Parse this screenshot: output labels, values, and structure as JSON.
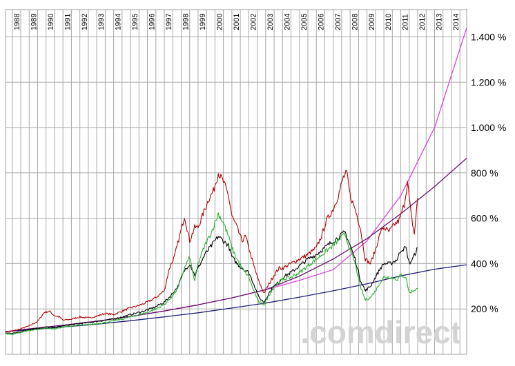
{
  "chart_data": {
    "type": "line",
    "title": "",
    "xlabel": "",
    "ylabel": "",
    "x_tick_labels": [
      "1988",
      "1989",
      "1990",
      "1991",
      "1992",
      "1993",
      "1994",
      "1995",
      "1996",
      "1997",
      "1998",
      "1999",
      "2000",
      "2001",
      "2002",
      "2003",
      "2004",
      "2005",
      "2006",
      "2007",
      "2008",
      "2009",
      "2010",
      "2011",
      "2012",
      "2013",
      "2014"
    ],
    "y_tick_labels": [
      "200 %",
      "400 %",
      "600 %",
      "800 %",
      "1.000 %",
      "1.200 %",
      "1.400 %"
    ],
    "y_tick_values": [
      200,
      400,
      600,
      800,
      1000,
      1200,
      1400
    ],
    "xlim": [
      1987.6,
      2014.9
    ],
    "ylim": [
      0,
      1520
    ],
    "grid": true,
    "legend": "none",
    "watermark": ".comdirect",
    "series": [
      {
        "color": "#b00000",
        "x": [
          1987.6,
          1988.0,
          1988.5,
          1989.0,
          1989.5,
          1989.9,
          1990.2,
          1990.5,
          1990.8,
          1991.0,
          1991.5,
          1992.0,
          1992.5,
          1993.0,
          1993.5,
          1994.0,
          1994.5,
          1995.0,
          1995.5,
          1996.0,
          1996.5,
          1997.0,
          1997.3,
          1997.6,
          1997.9,
          1998.2,
          1998.5,
          1998.8,
          1999.0,
          1999.3,
          1999.6,
          1999.9,
          2000.2,
          2000.5,
          2000.8,
          2001.0,
          2001.3,
          2001.6,
          2001.8,
          2002.0,
          2002.3,
          2002.6,
          2002.9,
          2003.2,
          2003.5,
          2003.8,
          2004.0,
          2004.5,
          2005.0,
          2005.5,
          2006.0,
          2006.3,
          2006.6,
          2007.0,
          2007.3,
          2007.6,
          2007.8,
          2008.0,
          2008.3,
          2008.6,
          2008.9,
          2009.2,
          2009.5,
          2009.8,
          2010.0,
          2010.3,
          2010.6,
          2010.9,
          2011.2,
          2011.4,
          2011.6,
          2011.8,
          2012.0
        ],
        "y": [
          100,
          102,
          112,
          125,
          145,
          185,
          190,
          170,
          165,
          150,
          155,
          165,
          160,
          168,
          180,
          175,
          190,
          205,
          215,
          230,
          250,
          280,
          380,
          430,
          520,
          610,
          500,
          560,
          560,
          620,
          680,
          720,
          800,
          760,
          700,
          610,
          560,
          500,
          520,
          470,
          390,
          320,
          270,
          310,
          350,
          380,
          380,
          400,
          420,
          440,
          470,
          520,
          590,
          640,
          700,
          780,
          800,
          700,
          640,
          560,
          420,
          400,
          460,
          540,
          560,
          540,
          570,
          590,
          660,
          760,
          620,
          530,
          690
        ]
      },
      {
        "color": "#000000",
        "x": [
          1987.6,
          1988.0,
          1988.5,
          1989.0,
          1989.5,
          1990.0,
          1990.5,
          1991.0,
          1991.5,
          1992.0,
          1992.5,
          1993.0,
          1993.5,
          1994.0,
          1994.5,
          1995.0,
          1995.5,
          1996.0,
          1996.5,
          1997.0,
          1997.4,
          1997.8,
          1998.2,
          1998.5,
          1998.8,
          1999.0,
          1999.4,
          1999.8,
          2000.2,
          2000.5,
          2000.8,
          2001.0,
          2001.3,
          2001.6,
          2002.0,
          2002.3,
          2002.6,
          2002.9,
          2003.2,
          2003.5,
          2003.8,
          2004.0,
          2004.5,
          2005.0,
          2005.5,
          2006.0,
          2006.5,
          2007.0,
          2007.4,
          2007.7,
          2008.0,
          2008.3,
          2008.6,
          2008.9,
          2009.2,
          2009.5,
          2009.8,
          2010.0,
          2010.4,
          2010.8,
          2011.0,
          2011.3,
          2011.5,
          2011.7,
          2012.0
        ],
        "y": [
          95,
          92,
          100,
          110,
          115,
          120,
          118,
          125,
          130,
          135,
          140,
          145,
          150,
          155,
          165,
          175,
          185,
          195,
          210,
          230,
          260,
          300,
          370,
          400,
          350,
          380,
          440,
          480,
          520,
          500,
          480,
          430,
          400,
          380,
          360,
          310,
          250,
          230,
          270,
          300,
          320,
          340,
          360,
          390,
          420,
          440,
          470,
          500,
          520,
          540,
          480,
          420,
          330,
          280,
          300,
          340,
          380,
          400,
          400,
          420,
          460,
          470,
          400,
          420,
          470
        ]
      },
      {
        "color": "#22b22a",
        "x": [
          1987.6,
          1988.0,
          1988.5,
          1989.0,
          1989.5,
          1990.0,
          1990.5,
          1991.0,
          1991.5,
          1992.0,
          1992.5,
          1993.0,
          1993.5,
          1994.0,
          1994.5,
          1995.0,
          1995.5,
          1996.0,
          1996.5,
          1997.0,
          1997.4,
          1997.8,
          1998.2,
          1998.5,
          1998.8,
          1999.0,
          1999.4,
          1999.8,
          2000.2,
          2000.5,
          2000.8,
          2001.0,
          2001.3,
          2001.6,
          2002.0,
          2002.3,
          2002.6,
          2002.9,
          2003.2,
          2003.5,
          2003.8,
          2004.0,
          2004.5,
          2005.0,
          2005.5,
          2006.0,
          2006.5,
          2007.0,
          2007.4,
          2007.7,
          2008.0,
          2008.3,
          2008.6,
          2008.9,
          2009.2,
          2009.5,
          2009.8,
          2010.0,
          2010.4,
          2010.8,
          2011.0,
          2011.3,
          2011.5,
          2011.7,
          2012.0
        ],
        "y": [
          90,
          88,
          95,
          105,
          110,
          115,
          112,
          120,
          125,
          128,
          130,
          135,
          140,
          148,
          155,
          165,
          175,
          185,
          200,
          220,
          250,
          290,
          380,
          430,
          320,
          400,
          480,
          540,
          620,
          580,
          520,
          470,
          420,
          380,
          340,
          280,
          230,
          220,
          260,
          300,
          320,
          330,
          340,
          360,
          390,
          420,
          450,
          480,
          510,
          530,
          460,
          400,
          300,
          240,
          250,
          280,
          320,
          340,
          340,
          330,
          350,
          340,
          270,
          280,
          290
        ]
      },
      {
        "color": "#e040e0",
        "x": [
          1987.6,
          1989,
          1991,
          1993,
          1995,
          1997,
          1999,
          2001,
          2003,
          2005,
          2007,
          2009,
          2011,
          2013,
          2014.9
        ],
        "y": [
          100,
          112,
          128,
          146,
          167,
          191,
          218,
          249,
          285,
          326,
          373,
          500,
          700,
          1000,
          1440
        ]
      },
      {
        "color": "#6a1070",
        "x": [
          1987.6,
          1989,
          1991,
          1993,
          1995,
          1997,
          1999,
          2001,
          2003,
          2005,
          2007,
          2009,
          2011,
          2013,
          2014.9
        ],
        "y": [
          100,
          112,
          128,
          146,
          167,
          191,
          218,
          249,
          285,
          345,
          420,
          510,
          620,
          740,
          865
        ]
      },
      {
        "color": "#202078",
        "x": [
          1987.6,
          1989,
          1991,
          1993,
          1995,
          1997,
          1999,
          2001,
          2003,
          2005,
          2007,
          2009,
          2011,
          2013,
          2014.9
        ],
        "y": [
          100,
          108,
          120,
          133,
          148,
          165,
          183,
          204,
          226,
          252,
          280,
          311,
          346,
          375,
          395
        ]
      }
    ]
  }
}
